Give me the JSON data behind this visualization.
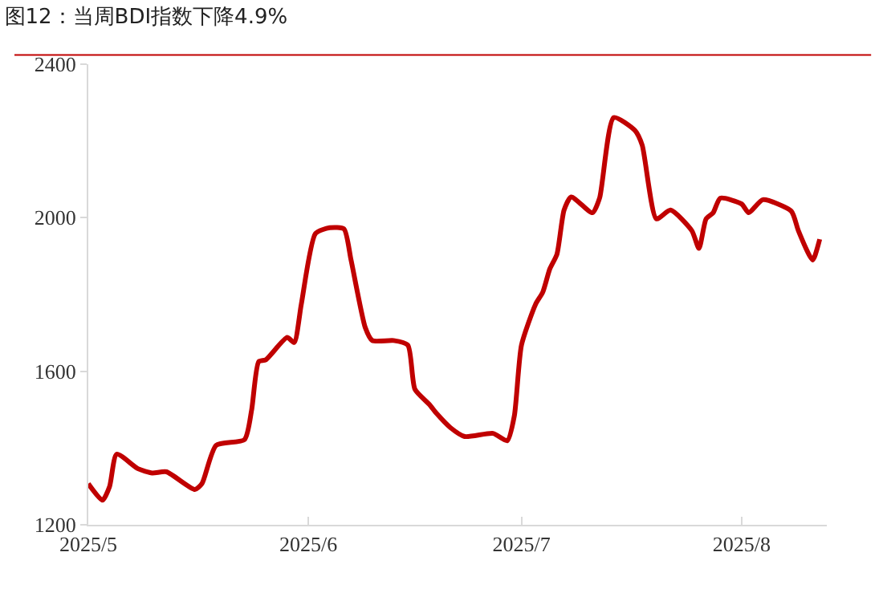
{
  "chart_data": {
    "type": "line",
    "title": "图12：当周BDI指数下降4.9%",
    "x": [
      "2025-05-01",
      "2025-05-03",
      "2025-05-04",
      "2025-05-05",
      "2025-05-08",
      "2025-05-10",
      "2025-05-12",
      "2025-05-16",
      "2025-05-17",
      "2025-05-19",
      "2025-05-23",
      "2025-05-24",
      "2025-05-25",
      "2025-05-26",
      "2025-05-29",
      "2025-05-30",
      "2025-05-31",
      "2025-06-02",
      "2025-06-04",
      "2025-06-06",
      "2025-06-07",
      "2025-06-09",
      "2025-06-10",
      "2025-06-13",
      "2025-06-15",
      "2025-06-16",
      "2025-06-18",
      "2025-06-19",
      "2025-06-21",
      "2025-06-23",
      "2025-06-27",
      "2025-06-29",
      "2025-06-30",
      "2025-07-01",
      "2025-07-03",
      "2025-07-04",
      "2025-07-05",
      "2025-07-06",
      "2025-07-07",
      "2025-07-08",
      "2025-07-11",
      "2025-07-12",
      "2025-07-14",
      "2025-07-17",
      "2025-07-18",
      "2025-07-20",
      "2025-07-22",
      "2025-07-25",
      "2025-07-26",
      "2025-07-27",
      "2025-07-28",
      "2025-07-29",
      "2025-08-01",
      "2025-08-02",
      "2025-08-04",
      "2025-08-08",
      "2025-08-09",
      "2025-08-11",
      "2025-08-12"
    ],
    "series": [
      {
        "color": "#c00000",
        "values": [
          1307,
          1264,
          1300,
          1384,
          1346,
          1335,
          1338,
          1292,
          1307,
          1407,
          1422,
          1499,
          1625,
          1630,
          1688,
          1675,
          1775,
          1959,
          1974,
          1971,
          1890,
          1714,
          1680,
          1680,
          1668,
          1553,
          1514,
          1491,
          1453,
          1430,
          1438,
          1419,
          1484,
          1668,
          1775,
          1806,
          1867,
          1905,
          2020,
          2054,
          2013,
          2051,
          2261,
          2227,
          2189,
          1997,
          2020,
          1966,
          1920,
          1997,
          2013,
          2051,
          2036,
          2013,
          2047,
          2017,
          1966,
          1890,
          1944
        ]
      }
    ],
    "xlim": [
      "2025-05-01",
      "2025-08-13"
    ],
    "xticks": [
      {
        "value": "2025-05-01",
        "label": "2025/5"
      },
      {
        "value": "2025-06-01",
        "label": "2025/6"
      },
      {
        "value": "2025-07-01",
        "label": "2025/7"
      },
      {
        "value": "2025-08-01",
        "label": "2025/8"
      }
    ],
    "ylim": [
      1200,
      2400
    ],
    "yticks": [
      1200,
      1600,
      2000,
      2400
    ],
    "marker": "none",
    "line_style": "solid"
  }
}
